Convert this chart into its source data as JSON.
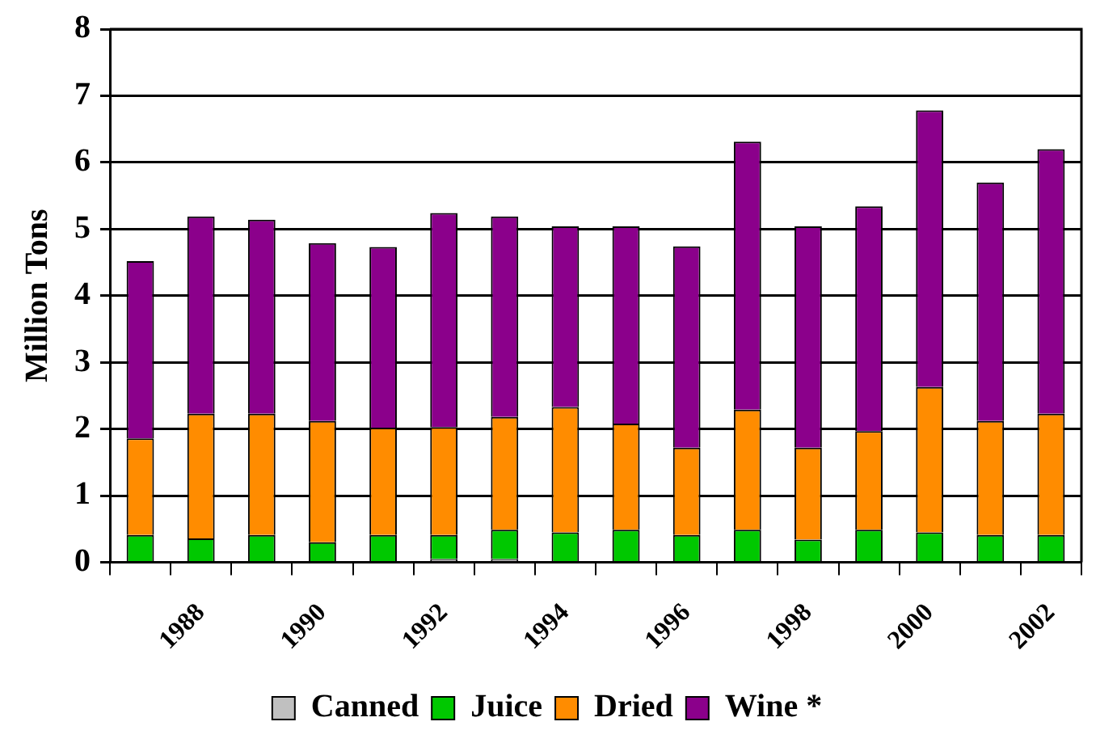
{
  "chart_data": {
    "type": "bar",
    "ylabel": "Million Tons",
    "stacked": true,
    "categories": [
      null,
      "1988",
      null,
      "1990",
      null,
      "1992",
      null,
      "1994",
      null,
      "1996",
      null,
      "1998",
      null,
      "2000",
      null,
      "2002"
    ],
    "series": [
      {
        "name": "Canned",
        "color": "#c0c0c0",
        "values": [
          0,
          0,
          0,
          0,
          0,
          0.05,
          0.05,
          0,
          0,
          0,
          0,
          0,
          0,
          0,
          0,
          0
        ]
      },
      {
        "name": "Juice",
        "color": "#00c800",
        "values": [
          0.41,
          0.36,
          0.41,
          0.3,
          0.41,
          0.36,
          0.44,
          0.45,
          0.49,
          0.41,
          0.49,
          0.34,
          0.49,
          0.45,
          0.41,
          0.41
        ]
      },
      {
        "name": "Dried",
        "color": "#ff8c00",
        "values": [
          1.45,
          1.87,
          1.82,
          1.82,
          1.61,
          1.62,
          1.69,
          1.88,
          1.59,
          1.31,
          1.8,
          1.38,
          1.48,
          2.18,
          1.71,
          1.82
        ]
      },
      {
        "name": "Wine *",
        "color": "#8b008b",
        "values": [
          2.66,
          2.96,
          2.91,
          2.67,
          2.71,
          3.21,
          3.01,
          2.71,
          2.96,
          3.02,
          4.02,
          3.32,
          3.37,
          4.15,
          3.58,
          3.97
        ]
      }
    ],
    "ylim": [
      0,
      8
    ],
    "yticks": [
      0,
      1,
      2,
      3,
      4,
      5,
      6,
      7,
      8
    ],
    "grid": "y",
    "legend": "bottom"
  }
}
